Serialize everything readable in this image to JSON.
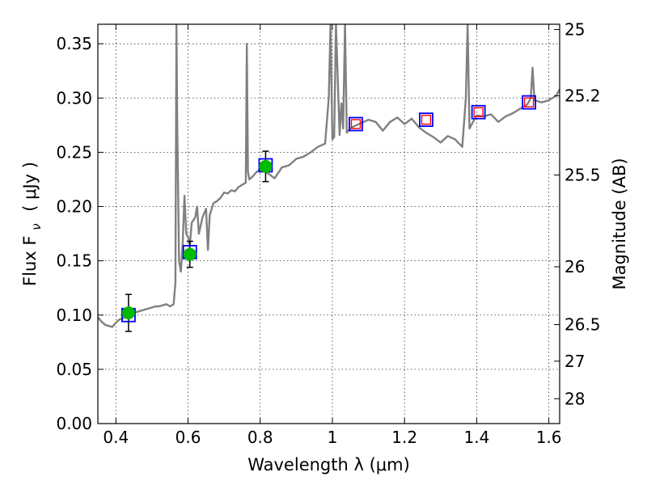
{
  "chart_data": {
    "type": "line",
    "xlabel": "Wavelength  λ (μm)",
    "ylabel": "Flux  F",
    "ylabel_subscript": "ν",
    "ylabel_unit": "( μJy )",
    "y2label": "Magnitude (AB)",
    "xlim": [
      0.35,
      1.63
    ],
    "ylim": [
      0.0,
      0.368
    ],
    "grid": true,
    "x_ticks": [
      0.4,
      0.6,
      0.8,
      1.0,
      1.2,
      1.4,
      1.6
    ],
    "x_tick_labels": [
      "0.4",
      "0.6",
      "0.8",
      "1",
      "1.2",
      "1.4",
      "1.6"
    ],
    "y_ticks": [
      0.0,
      0.05,
      0.1,
      0.15,
      0.2,
      0.25,
      0.3,
      0.35
    ],
    "y_tick_labels": [
      "0.00",
      "0.05",
      "0.10",
      "0.15",
      "0.20",
      "0.25",
      "0.30",
      "0.35"
    ],
    "y2_ticks": [
      {
        "flux": 0.3631,
        "label": "25"
      },
      {
        "flux": 0.302,
        "label": "25.2"
      },
      {
        "flux": 0.2291,
        "label": "25.5"
      },
      {
        "flux": 0.1445,
        "label": "26"
      },
      {
        "flux": 0.0912,
        "label": "26.5"
      },
      {
        "flux": 0.0575,
        "label": "27"
      },
      {
        "flux": 0.0229,
        "label": "28"
      }
    ],
    "colors": {
      "spectrum": "#808080",
      "model_square": "#0000ff",
      "predicted_square": "#ff0000",
      "observed_point": "#00bb00",
      "errorbar": "#000000",
      "grid": "#000000"
    },
    "series": [
      {
        "type": "line",
        "x": [
          0.35,
          0.36,
          0.37,
          0.38,
          0.39,
          0.4,
          0.41,
          0.42,
          0.43,
          0.44,
          0.45,
          0.46,
          0.47,
          0.48,
          0.49,
          0.5,
          0.51,
          0.52,
          0.53,
          0.54,
          0.55,
          0.56,
          0.565,
          0.568,
          0.57,
          0.575,
          0.58,
          0.585,
          0.59,
          0.595,
          0.6,
          0.605,
          0.61,
          0.62,
          0.625,
          0.63,
          0.64,
          0.65,
          0.655,
          0.66,
          0.67,
          0.68,
          0.69,
          0.7,
          0.71,
          0.72,
          0.73,
          0.74,
          0.75,
          0.76,
          0.763,
          0.766,
          0.77,
          0.78,
          0.79,
          0.8,
          0.82,
          0.84,
          0.86,
          0.88,
          0.9,
          0.92,
          0.94,
          0.96,
          0.98,
          0.99,
          0.995,
          1.0,
          1.005,
          1.01,
          1.02,
          1.025,
          1.03,
          1.035,
          1.04,
          1.05,
          1.06,
          1.08,
          1.1,
          1.12,
          1.14,
          1.16,
          1.18,
          1.2,
          1.22,
          1.24,
          1.26,
          1.28,
          1.3,
          1.32,
          1.34,
          1.36,
          1.37,
          1.375,
          1.38,
          1.39,
          1.4,
          1.42,
          1.44,
          1.46,
          1.48,
          1.5,
          1.52,
          1.54,
          1.55,
          1.555,
          1.56,
          1.58,
          1.6,
          1.62,
          1.63
        ],
        "y": [
          0.098,
          0.094,
          0.091,
          0.09,
          0.089,
          0.093,
          0.096,
          0.097,
          0.1,
          0.104,
          0.102,
          0.103,
          0.104,
          0.105,
          0.106,
          0.107,
          0.108,
          0.108,
          0.109,
          0.11,
          0.108,
          0.11,
          0.13,
          0.368,
          0.28,
          0.15,
          0.14,
          0.165,
          0.21,
          0.175,
          0.172,
          0.165,
          0.185,
          0.19,
          0.2,
          0.175,
          0.19,
          0.198,
          0.16,
          0.192,
          0.203,
          0.205,
          0.208,
          0.213,
          0.212,
          0.215,
          0.214,
          0.218,
          0.22,
          0.222,
          0.35,
          0.232,
          0.225,
          0.228,
          0.232,
          0.234,
          0.231,
          0.226,
          0.236,
          0.238,
          0.244,
          0.246,
          0.25,
          0.255,
          0.258,
          0.3,
          0.368,
          0.262,
          0.264,
          0.368,
          0.266,
          0.295,
          0.272,
          0.368,
          0.268,
          0.272,
          0.274,
          0.277,
          0.28,
          0.278,
          0.27,
          0.278,
          0.282,
          0.276,
          0.281,
          0.273,
          0.268,
          0.264,
          0.259,
          0.265,
          0.262,
          0.255,
          0.3,
          0.368,
          0.272,
          0.278,
          0.284,
          0.283,
          0.285,
          0.278,
          0.283,
          0.286,
          0.29,
          0.294,
          0.3,
          0.328,
          0.298,
          0.296,
          0.298,
          0.302,
          0.308
        ],
        "color": "#808080"
      },
      {
        "type": "scatter",
        "marker": "open-square",
        "x": [
          0.435,
          0.605,
          0.815,
          1.065,
          1.26,
          1.405,
          1.545
        ],
        "y": [
          0.1,
          0.158,
          0.238,
          0.276,
          0.28,
          0.287,
          0.296
        ],
        "color": "#0000ff"
      },
      {
        "type": "scatter",
        "marker": "open-square-small",
        "x": [
          1.065,
          1.26,
          1.405,
          1.545
        ],
        "y": [
          0.276,
          0.28,
          0.287,
          0.296
        ],
        "color": "#ff0000"
      },
      {
        "type": "scatter",
        "marker": "filled-circle",
        "x": [
          0.435,
          0.605,
          0.815
        ],
        "y": [
          0.102,
          0.156,
          0.237
        ],
        "yerr": [
          0.017,
          0.012,
          0.014
        ],
        "color": "#00bb00"
      }
    ]
  }
}
